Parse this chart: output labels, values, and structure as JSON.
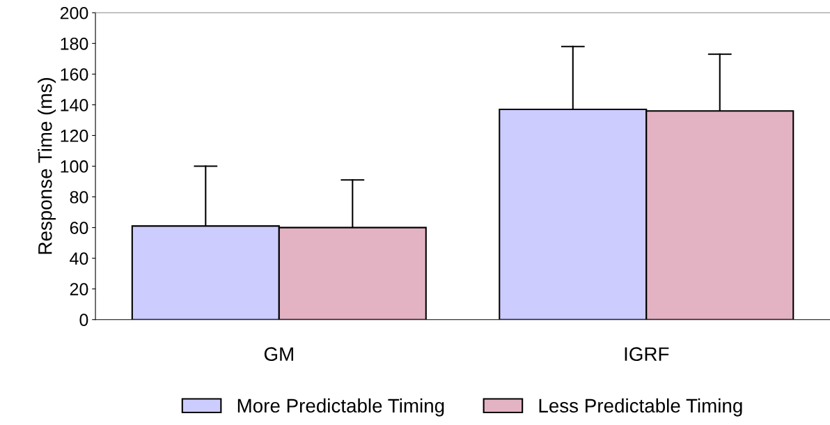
{
  "chart_data": {
    "type": "bar",
    "ylabel": "Response Time (ms)",
    "categories": [
      "GM",
      "IGRF"
    ],
    "series": [
      {
        "name": "More Predictable Timing",
        "color": "#ccccff",
        "values": [
          61,
          137
        ],
        "errors": [
          [
            61,
            100
          ],
          [
            137,
            178
          ]
        ]
      },
      {
        "name": "Less Predictable Timing",
        "color": "#e3b3c4",
        "values": [
          60,
          136
        ],
        "errors": [
          [
            60,
            91
          ],
          [
            136,
            173
          ]
        ]
      }
    ],
    "ylim": [
      0,
      200
    ],
    "yticks": [
      0,
      20,
      40,
      60,
      80,
      100,
      120,
      140,
      160,
      180,
      200
    ],
    "grid": false,
    "legend": "bottom"
  }
}
